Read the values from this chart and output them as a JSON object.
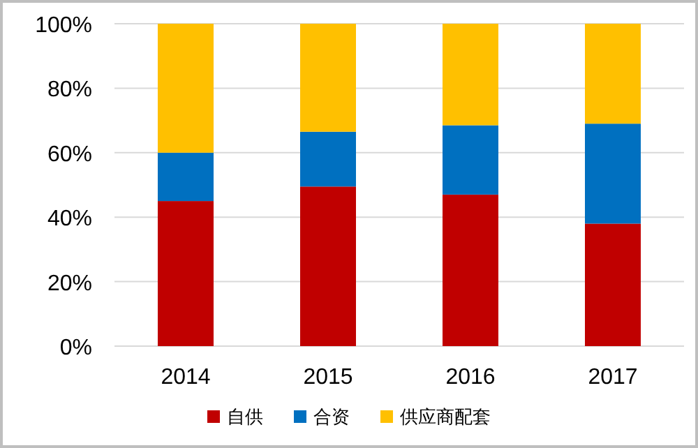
{
  "chart_data": {
    "type": "bar",
    "stacked": true,
    "categories": [
      "2014",
      "2015",
      "2016",
      "2017"
    ],
    "series": [
      {
        "name": "自供",
        "color": "#c00000",
        "values": [
          45,
          49.5,
          47,
          38
        ]
      },
      {
        "name": "合资",
        "color": "#0070c0",
        "values": [
          15,
          17,
          21.5,
          31
        ]
      },
      {
        "name": "供应商配套",
        "color": "#ffc000",
        "values": [
          40,
          33.5,
          31.5,
          31
        ]
      }
    ],
    "ylim": [
      0,
      100
    ],
    "yticks": [
      {
        "value": 0,
        "label": "0%"
      },
      {
        "value": 20,
        "label": "20%"
      },
      {
        "value": 40,
        "label": "40%"
      },
      {
        "value": 60,
        "label": "60%"
      },
      {
        "value": 80,
        "label": "80%"
      },
      {
        "value": 100,
        "label": "100%"
      }
    ],
    "grid": "y",
    "legend": "bottom"
  }
}
